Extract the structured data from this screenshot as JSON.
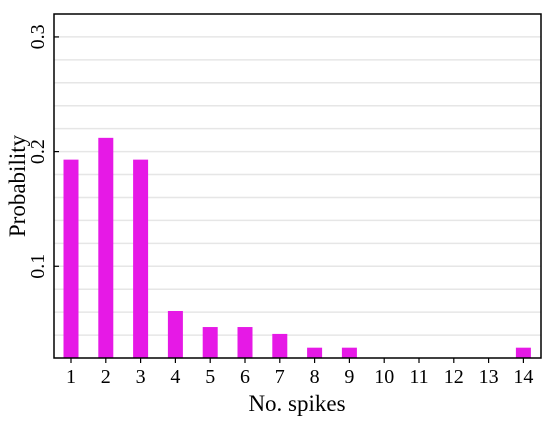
{
  "chart_data": {
    "type": "bar",
    "title": "",
    "xlabel": "No. spikes",
    "ylabel": "Probability",
    "categories": [
      "1",
      "2",
      "3",
      "4",
      "5",
      "6",
      "7",
      "8",
      "9",
      "10",
      "11",
      "12",
      "13",
      "14"
    ],
    "values": [
      0.193,
      0.212,
      0.193,
      0.061,
      0.047,
      0.047,
      0.041,
      0.029,
      0.029,
      0,
      0,
      0,
      0,
      0.029
    ],
    "ylim": [
      0.02,
      0.32
    ],
    "yticks": [
      "0.1",
      "0.2",
      "0.3"
    ],
    "ytick_values": [
      0.1,
      0.2,
      0.3
    ],
    "gridline_values": [
      0.04,
      0.06,
      0.08,
      0.1,
      0.12,
      0.14,
      0.16,
      0.18,
      0.2,
      0.22,
      0.24,
      0.26,
      0.28,
      0.3
    ],
    "grid": true,
    "bar_color": "#e619e6",
    "grid_color": "#e6e6e6"
  }
}
